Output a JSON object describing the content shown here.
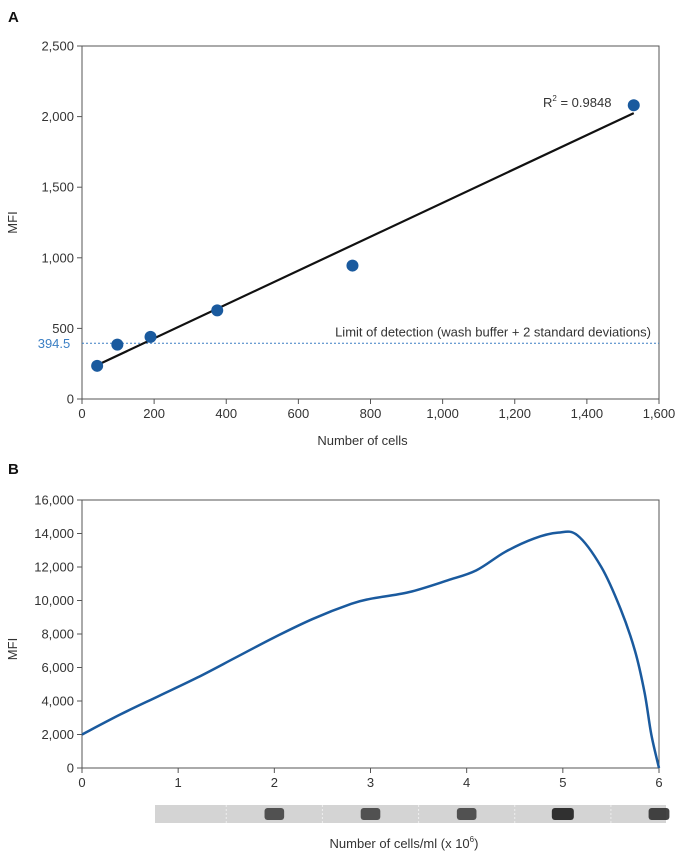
{
  "chart_data": [
    {
      "panel": "A",
      "type": "scatter",
      "xlabel": "Number of cells",
      "ylabel": "MFI",
      "xlim": [
        0,
        1600
      ],
      "ylim": [
        0,
        2500
      ],
      "x_ticks": [
        0,
        200,
        400,
        600,
        800,
        1000,
        1200,
        1400,
        1600
      ],
      "x_tick_labels": [
        "0",
        "200",
        "400",
        "600",
        "800",
        "1,000",
        "1,200",
        "1,400",
        "1,600"
      ],
      "y_ticks": [
        0,
        500,
        1000,
        1500,
        2000,
        2500
      ],
      "y_tick_labels": [
        "0",
        "500",
        "1,000",
        "1,500",
        "2,000",
        "2,500"
      ],
      "points": {
        "x": [
          42,
          98,
          190,
          375,
          750,
          1530
        ],
        "y": [
          235,
          385,
          440,
          628,
          945,
          2080
        ]
      },
      "fit_line": {
        "x": [
          42,
          1530
        ],
        "y": [
          240,
          2025
        ]
      },
      "annotation": {
        "prefix": "R",
        "sup": "2",
        "suffix": " = 0.9848"
      },
      "threshold": {
        "value": 394.5,
        "value_label": "394.5",
        "label": "Limit of detection (wash buffer + 2 standard deviations)"
      },
      "colors": {
        "points": "#1a5a9e",
        "line": "#111111",
        "threshold": "#3b7fc4",
        "axis": "#555555"
      },
      "grid": false
    },
    {
      "panel": "B",
      "type": "line",
      "xlabel_prefix": "Number of cells/ml (x 10",
      "xlabel_sup": "6",
      "xlabel_suffix": ")",
      "ylabel": "MFI",
      "xlim": [
        0,
        6
      ],
      "ylim": [
        0,
        16000
      ],
      "x_ticks": [
        0,
        1,
        2,
        3,
        4,
        5,
        6
      ],
      "x_tick_labels": [
        "0",
        "1",
        "2",
        "3",
        "4",
        "5",
        "6"
      ],
      "y_ticks": [
        0,
        2000,
        4000,
        6000,
        8000,
        10000,
        12000,
        14000,
        16000
      ],
      "y_tick_labels": [
        "0",
        "2,000",
        "4,000",
        "6,000",
        "8,000",
        "10,000",
        "12,000",
        "14,000",
        "16,000"
      ],
      "series": [
        {
          "x": [
            0,
            0.4,
            0.8,
            1.2,
            1.6,
            2.0,
            2.4,
            2.8,
            3.0,
            3.4,
            3.8,
            4.1,
            4.4,
            4.7,
            4.95,
            5.15,
            5.4,
            5.6,
            5.75,
            5.85,
            5.92,
            6.0
          ],
          "y": [
            2000,
            3200,
            4300,
            5400,
            6600,
            7800,
            8900,
            9800,
            10100,
            10500,
            11200,
            11800,
            12900,
            13700,
            14050,
            13900,
            12000,
            9500,
            7000,
            4500,
            2000,
            0
          ]
        }
      ],
      "colors": {
        "line": "#1a5a9e",
        "axis": "#555555"
      },
      "grid": false,
      "blot_band_intensity": [
        0.0,
        0.0,
        0.7,
        0.7,
        0.7,
        1.0,
        0.85
      ]
    }
  ]
}
